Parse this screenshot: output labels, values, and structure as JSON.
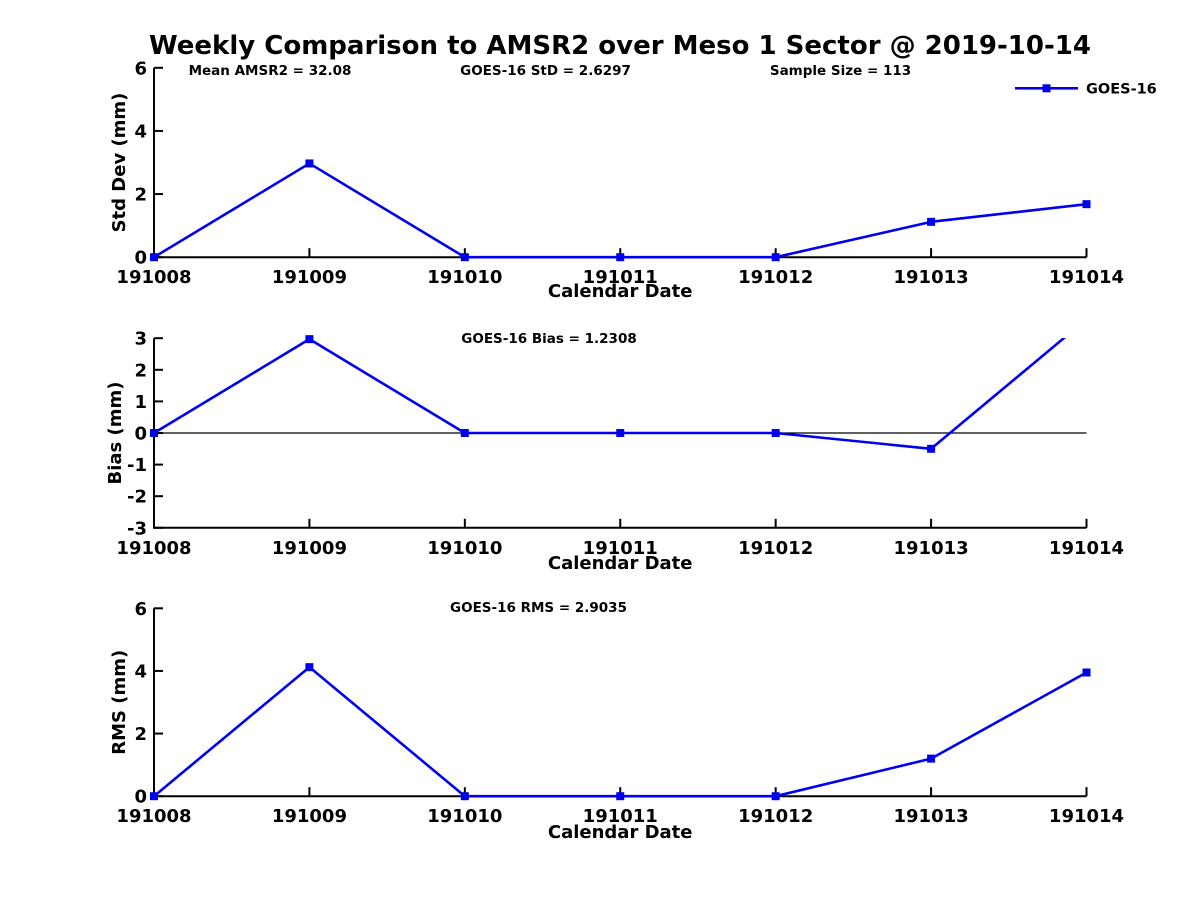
{
  "title": "Weekly Comparison to AMSR2 over Meso 1 Sector @ 2019-10-14",
  "legend": {
    "label": "GOES-16",
    "color": "#0000ee",
    "marker": "filled-square",
    "position": "top-right"
  },
  "x_axis": {
    "label": "Calendar Date",
    "categories": [
      "191008",
      "191009",
      "191010",
      "191011",
      "191012",
      "191013",
      "191014"
    ]
  },
  "chart_data": [
    {
      "type": "line",
      "name": "std-dev",
      "ylabel": "Std Dev (mm)",
      "xlabel": "Calendar Date",
      "ylim": [
        0,
        6
      ],
      "yticks": [
        0,
        2,
        4,
        6
      ],
      "categories": [
        "191008",
        "191009",
        "191010",
        "191011",
        "191012",
        "191013",
        "191014"
      ],
      "series": [
        {
          "name": "GOES-16",
          "color": "#0000ee",
          "values": [
            0,
            2.97,
            0,
            0,
            0,
            1.12,
            1.68
          ]
        }
      ],
      "annotations": [
        {
          "text": "Mean AMSR2 = 32.08",
          "x": 270
        },
        {
          "text": "GOES-16 StD = 2.6297",
          "x": 545.5
        },
        {
          "text": "Sample Size = 113",
          "x": 840.5
        }
      ],
      "zero_line": false,
      "grid": false
    },
    {
      "type": "line",
      "name": "bias",
      "ylabel": "Bias (mm)",
      "xlabel": "Calendar Date",
      "ylim": [
        -3,
        3
      ],
      "yticks": [
        -3,
        -2,
        -1,
        0,
        1,
        2,
        3
      ],
      "categories": [
        "191008",
        "191009",
        "191010",
        "191011",
        "191012",
        "191013",
        "191014"
      ],
      "series": [
        {
          "name": "GOES-16",
          "color": "#0000ee",
          "values": [
            0,
            2.97,
            0,
            0,
            0,
            -0.5,
            3.6
          ]
        }
      ],
      "annotations": [
        {
          "text": "GOES-16 Bias  = 1.2308",
          "x": 549
        }
      ],
      "zero_line": true,
      "grid": false
    },
    {
      "type": "line",
      "name": "rms",
      "ylabel": "RMS (mm)",
      "xlabel": "Calendar Date",
      "ylim": [
        0,
        6
      ],
      "yticks": [
        0,
        2,
        4,
        6
      ],
      "categories": [
        "191008",
        "191009",
        "191010",
        "191011",
        "191012",
        "191013",
        "191014"
      ],
      "series": [
        {
          "name": "GOES-16",
          "color": "#0000ee",
          "values": [
            0,
            4.12,
            0,
            0,
            0,
            1.2,
            3.95
          ]
        }
      ],
      "annotations": [
        {
          "text": "GOES-16 RMS = 2.9035",
          "x": 538.5
        }
      ],
      "zero_line": false,
      "grid": false
    }
  ]
}
